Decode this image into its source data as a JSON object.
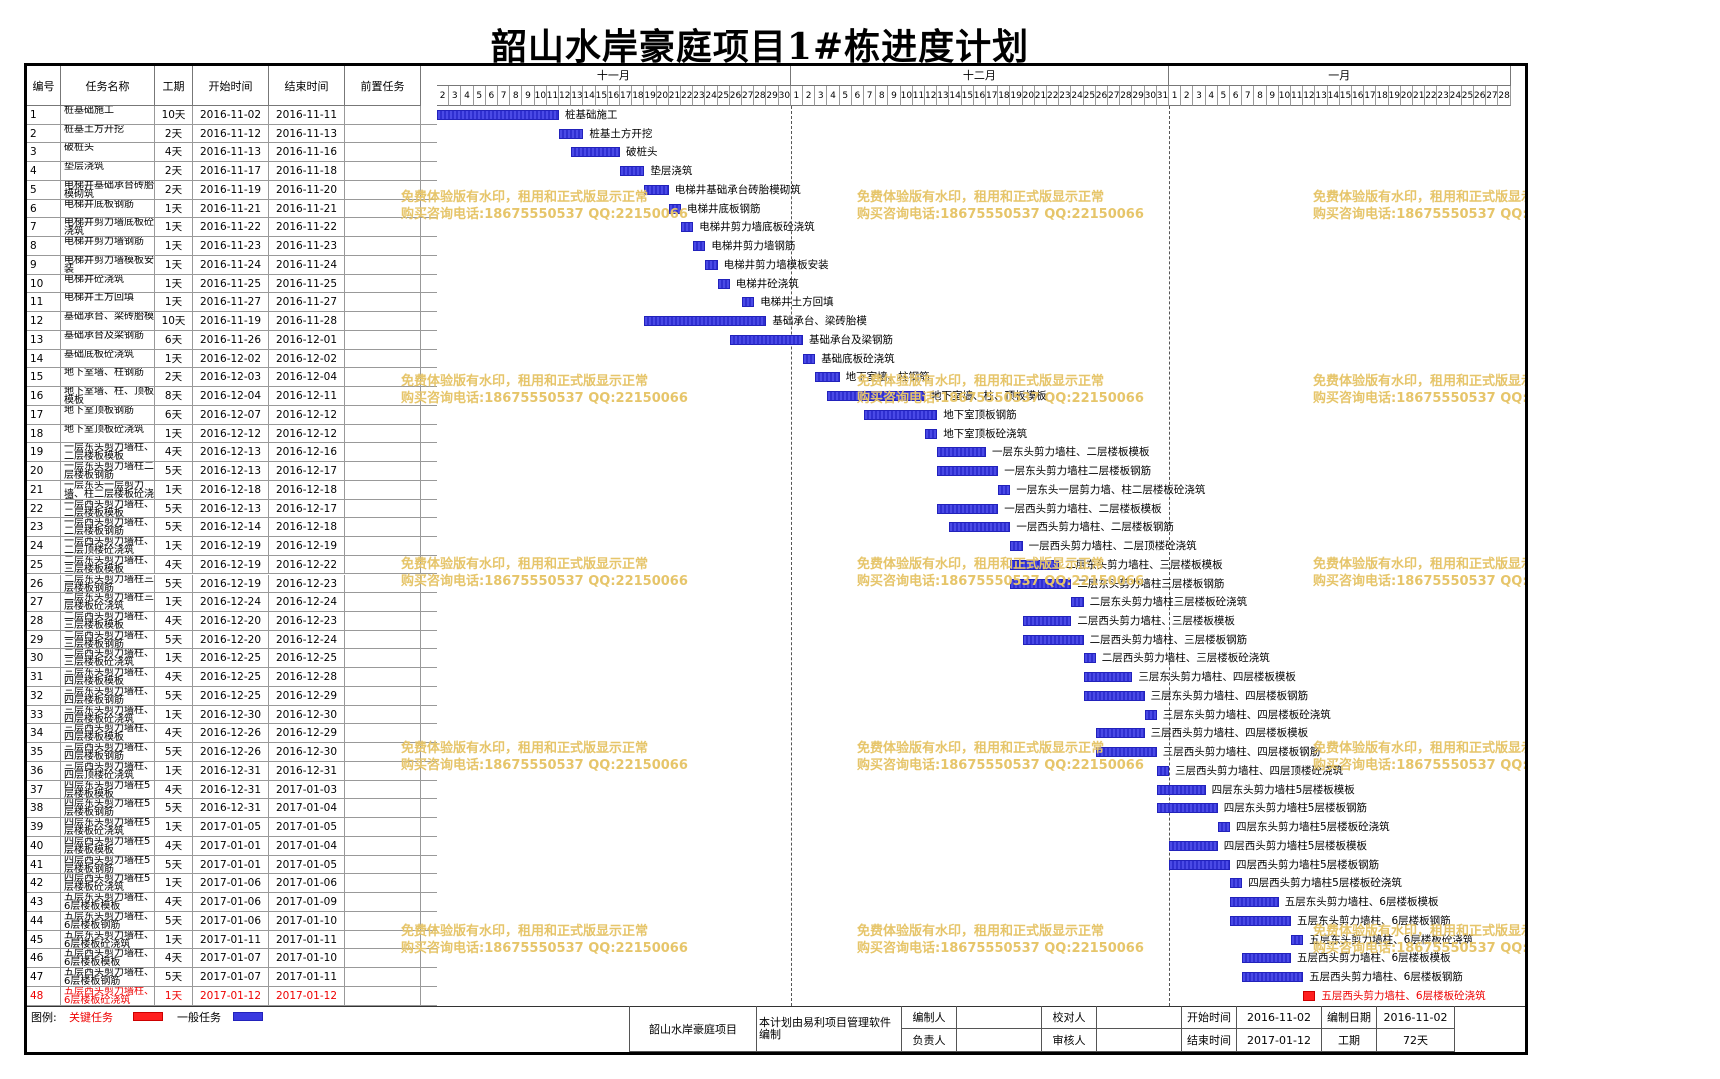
{
  "title": "韶山水岸豪庭项目1#栋进度计划",
  "columns": {
    "id": "编号",
    "name": "任务名称",
    "duration": "工期",
    "start": "开始时间",
    "end": "结束时间",
    "pred": "前置任务"
  },
  "months": [
    {
      "label": "十一月",
      "days": 29,
      "first_day": 2
    },
    {
      "label": "十二月",
      "days": 31,
      "first_day": 1
    },
    {
      "label": "一月",
      "days": 28,
      "first_day": 1
    }
  ],
  "chart_data": {
    "type": "gantt",
    "x_start": "2016-11-02",
    "x_end": "2017-01-28",
    "tasks": [
      {
        "id": "1",
        "name": "桩基础施工",
        "label": "桩基础施工",
        "duration": "10天",
        "start": "2016-11-02",
        "end": "2016-11-11",
        "critical": false
      },
      {
        "id": "2",
        "name": "桩基土方开挖",
        "label": "桩基土方开挖",
        "duration": "2天",
        "start": "2016-11-12",
        "end": "2016-11-13",
        "critical": false
      },
      {
        "id": "3",
        "name": "破桩头",
        "label": "破桩头",
        "duration": "4天",
        "start": "2016-11-13",
        "end": "2016-11-16",
        "critical": false
      },
      {
        "id": "4",
        "name": "垫层浇筑",
        "label": "垫层浇筑",
        "duration": "2天",
        "start": "2016-11-17",
        "end": "2016-11-18",
        "critical": false
      },
      {
        "id": "5",
        "name": "电梯井基础承台砖胎模砌筑",
        "label": "电梯井基础承台砖胎模砌筑",
        "duration": "2天",
        "start": "2016-11-19",
        "end": "2016-11-20",
        "critical": false
      },
      {
        "id": "6",
        "name": "电梯井底板钢筋",
        "label": "电梯井底板钢筋",
        "duration": "1天",
        "start": "2016-11-21",
        "end": "2016-11-21",
        "critical": false
      },
      {
        "id": "7",
        "name": "电梯井剪力墙底板砼浇筑",
        "label": "电梯井剪力墙底板砼浇筑",
        "duration": "1天",
        "start": "2016-11-22",
        "end": "2016-11-22",
        "critical": false
      },
      {
        "id": "8",
        "name": "电梯井剪力墙钢筋",
        "label": "电梯井剪力墙钢筋",
        "duration": "1天",
        "start": "2016-11-23",
        "end": "2016-11-23",
        "critical": false
      },
      {
        "id": "9",
        "name": "电梯井剪力墙模板安装",
        "label": "电梯井剪力墙模板安装",
        "duration": "1天",
        "start": "2016-11-24",
        "end": "2016-11-24",
        "critical": false
      },
      {
        "id": "10",
        "name": "电梯井砼浇筑",
        "label": "电梯井砼浇筑",
        "duration": "1天",
        "start": "2016-11-25",
        "end": "2016-11-25",
        "critical": false
      },
      {
        "id": "11",
        "name": "电梯井土方回填",
        "label": "电梯井土方回填",
        "duration": "1天",
        "start": "2016-11-27",
        "end": "2016-11-27",
        "critical": false
      },
      {
        "id": "12",
        "name": "基础承台、梁砖胎模",
        "label": "基础承台、梁砖胎模",
        "duration": "10天",
        "start": "2016-11-19",
        "end": "2016-11-28",
        "critical": false
      },
      {
        "id": "13",
        "name": "基础承台及梁钢筋",
        "label": "基础承台及梁钢筋",
        "duration": "6天",
        "start": "2016-11-26",
        "end": "2016-12-01",
        "critical": false
      },
      {
        "id": "14",
        "name": "基础底板砼浇筑",
        "label": "基础底板砼浇筑",
        "duration": "1天",
        "start": "2016-12-02",
        "end": "2016-12-02",
        "critical": false
      },
      {
        "id": "15",
        "name": "地下室墙、柱钢筋",
        "label": "地下室墙、柱钢筋",
        "duration": "2天",
        "start": "2016-12-03",
        "end": "2016-12-04",
        "critical": false
      },
      {
        "id": "16",
        "name": "地下室墙、柱、顶板模板",
        "label": "地下室墙、柱、顶板模板",
        "duration": "8天",
        "start": "2016-12-04",
        "end": "2016-12-11",
        "critical": false
      },
      {
        "id": "17",
        "name": "地下室顶板钢筋",
        "label": "地下室顶板钢筋",
        "duration": "6天",
        "start": "2016-12-07",
        "end": "2016-12-12",
        "critical": false
      },
      {
        "id": "18",
        "name": "地下室顶板砼浇筑",
        "label": "地下室顶板砼浇筑",
        "duration": "1天",
        "start": "2016-12-12",
        "end": "2016-12-12",
        "critical": false
      },
      {
        "id": "19",
        "name": "一层东头剪力墙柱、二层楼板模板",
        "label": "一层东头剪力墙柱、二层楼板模板",
        "duration": "4天",
        "start": "2016-12-13",
        "end": "2016-12-16",
        "critical": false
      },
      {
        "id": "20",
        "name": "一层东头剪力墙柱二层楼板钢筋",
        "label": "一层东头剪力墙柱二层楼板钢筋",
        "duration": "5天",
        "start": "2016-12-13",
        "end": "2016-12-17",
        "critical": false
      },
      {
        "id": "21",
        "name": "一层东头一层剪力墙、柱二层楼板砼浇筑",
        "label": "一层东头一层剪力墙、柱二层楼板砼浇筑",
        "duration": "1天",
        "start": "2016-12-18",
        "end": "2016-12-18",
        "critical": false
      },
      {
        "id": "22",
        "name": "一层西头剪力墙柱、二层楼板模板",
        "label": "一层西头剪力墙柱、二层楼板模板",
        "duration": "5天",
        "start": "2016-12-13",
        "end": "2016-12-17",
        "critical": false
      },
      {
        "id": "23",
        "name": "一层西头剪力墙柱、二层楼板钢筋",
        "label": "一层西头剪力墙柱、二层楼板钢筋",
        "duration": "5天",
        "start": "2016-12-14",
        "end": "2016-12-18",
        "critical": false
      },
      {
        "id": "24",
        "name": "一层西头剪力墙柱、二层顶楼砼浇筑",
        "label": "一层西头剪力墙柱、二层顶楼砼浇筑",
        "duration": "1天",
        "start": "2016-12-19",
        "end": "2016-12-19",
        "critical": false
      },
      {
        "id": "25",
        "name": "二层东头剪力墙柱、三层楼板模板",
        "label": "二层东头剪力墙柱、三层楼板模板",
        "duration": "4天",
        "start": "2016-12-19",
        "end": "2016-12-22",
        "critical": false
      },
      {
        "id": "26",
        "name": "二层东头剪力墙柱三层楼板钢筋",
        "label": "二层东头剪力墙柱三层楼板钢筋",
        "duration": "5天",
        "start": "2016-12-19",
        "end": "2016-12-23",
        "critical": false
      },
      {
        "id": "27",
        "name": "二层东头剪力墙柱三层楼板砼浇筑",
        "label": "二层东头剪力墙柱三层楼板砼浇筑",
        "duration": "1天",
        "start": "2016-12-24",
        "end": "2016-12-24",
        "critical": false
      },
      {
        "id": "28",
        "name": "二层西头剪力墙柱、三层楼板模板",
        "label": "二层西头剪力墙柱、三层楼板模板",
        "duration": "4天",
        "start": "2016-12-20",
        "end": "2016-12-23",
        "critical": false
      },
      {
        "id": "29",
        "name": "二层西头剪力墙柱、三层楼板钢筋",
        "label": "二层西头剪力墙柱、三层楼板钢筋",
        "duration": "5天",
        "start": "2016-12-20",
        "end": "2016-12-24",
        "critical": false
      },
      {
        "id": "30",
        "name": "二层西头剪力墙柱、三层楼板砼浇筑",
        "label": "二层西头剪力墙柱、三层楼板砼浇筑",
        "duration": "1天",
        "start": "2016-12-25",
        "end": "2016-12-25",
        "critical": false
      },
      {
        "id": "31",
        "name": "三层东头剪力墙柱、四层楼板模板",
        "label": "三层东头剪力墙柱、四层楼板模板",
        "duration": "4天",
        "start": "2016-12-25",
        "end": "2016-12-28",
        "critical": false
      },
      {
        "id": "32",
        "name": "三层东头剪力墙柱、四层楼板钢筋",
        "label": "三层东头剪力墙柱、四层楼板钢筋",
        "duration": "5天",
        "start": "2016-12-25",
        "end": "2016-12-29",
        "critical": false
      },
      {
        "id": "33",
        "name": "三层东头剪力墙柱、四层楼板砼浇筑",
        "label": "三层东头剪力墙柱、四层楼板砼浇筑",
        "duration": "1天",
        "start": "2016-12-30",
        "end": "2016-12-30",
        "critical": false
      },
      {
        "id": "34",
        "name": "三层西头剪力墙柱、四层楼板模板",
        "label": "三层西头剪力墙柱、四层楼板模板",
        "duration": "4天",
        "start": "2016-12-26",
        "end": "2016-12-29",
        "critical": false
      },
      {
        "id": "35",
        "name": "三层西头剪力墙柱、四层楼板钢筋",
        "label": "三层西头剪力墙柱、四层楼板钢筋",
        "duration": "5天",
        "start": "2016-12-26",
        "end": "2016-12-30",
        "critical": false
      },
      {
        "id": "36",
        "name": "三层西头剪力墙柱、四层顶楼砼浇筑",
        "label": "三层西头剪力墙柱、四层顶楼砼浇筑",
        "duration": "1天",
        "start": "2016-12-31",
        "end": "2016-12-31",
        "critical": false
      },
      {
        "id": "37",
        "name": "四层东头剪力墙柱5层楼板模板",
        "label": "四层东头剪力墙柱5层楼板模板",
        "duration": "4天",
        "start": "2016-12-31",
        "end": "2017-01-03",
        "critical": false
      },
      {
        "id": "38",
        "name": "四层东头剪力墙柱5层楼板钢筋",
        "label": "四层东头剪力墙柱5层楼板钢筋",
        "duration": "5天",
        "start": "2016-12-31",
        "end": "2017-01-04",
        "critical": false
      },
      {
        "id": "39",
        "name": "四层东头剪力墙柱5层楼板砼浇筑",
        "label": "四层东头剪力墙柱5层楼板砼浇筑",
        "duration": "1天",
        "start": "2017-01-05",
        "end": "2017-01-05",
        "critical": false
      },
      {
        "id": "40",
        "name": "四层西头剪力墙柱5层楼板模板",
        "label": "四层西头剪力墙柱5层楼板模板",
        "duration": "4天",
        "start": "2017-01-01",
        "end": "2017-01-04",
        "critical": false
      },
      {
        "id": "41",
        "name": "四层西头剪力墙柱5层楼板钢筋",
        "label": "四层西头剪力墙柱5层楼板钢筋",
        "duration": "5天",
        "start": "2017-01-01",
        "end": "2017-01-05",
        "critical": false
      },
      {
        "id": "42",
        "name": "四层西头剪力墙柱5层楼板砼浇筑",
        "label": "四层西头剪力墙柱5层楼板砼浇筑",
        "duration": "1天",
        "start": "2017-01-06",
        "end": "2017-01-06",
        "critical": false
      },
      {
        "id": "43",
        "name": "五层东头剪力墙柱、6层楼板模板",
        "label": "五层东头剪力墙柱、6层楼板模板",
        "duration": "4天",
        "start": "2017-01-06",
        "end": "2017-01-09",
        "critical": false
      },
      {
        "id": "44",
        "name": "五层东头剪力墙柱、6层楼板钢筋",
        "label": "五层东头剪力墙柱、6层楼板钢筋",
        "duration": "5天",
        "start": "2017-01-06",
        "end": "2017-01-10",
        "critical": false
      },
      {
        "id": "45",
        "name": "五层东头剪力墙柱、6层楼板砼浇筑",
        "label": "五层东头剪力墙柱、6层楼板砼浇筑",
        "duration": "1天",
        "start": "2017-01-11",
        "end": "2017-01-11",
        "critical": false
      },
      {
        "id": "46",
        "name": "五层西头剪力墙柱、6层楼板模板",
        "label": "五层西头剪力墙柱、6层楼板模板",
        "duration": "4天",
        "start": "2017-01-07",
        "end": "2017-01-10",
        "critical": false
      },
      {
        "id": "47",
        "name": "五层西头剪力墙柱、6层楼板钢筋",
        "label": "五层西头剪力墙柱、6层楼板钢筋",
        "duration": "5天",
        "start": "2017-01-07",
        "end": "2017-01-11",
        "critical": false
      },
      {
        "id": "48",
        "name": "五层西头剪力墙柱、6层楼板砼浇筑",
        "label": "五层西头剪力墙柱、6层楼板砼浇筑",
        "duration": "1天",
        "start": "2017-01-12",
        "end": "2017-01-12",
        "critical": true
      }
    ]
  },
  "legend": {
    "label": "图例:",
    "critical": "关键任务",
    "normal": "一般任务",
    "critical_color": "#ff2020",
    "normal_color": "#3a3ae0"
  },
  "watermark": {
    "line1": "免费体验版有水印，租用和正式版显示正常",
    "line2": "购买咨询电话:18675550537 QQ:22150066"
  },
  "footer": {
    "project": "韶山水岸豪庭项目",
    "software": "本计划由易利项目管理软件编制",
    "compiler_label": "编制人",
    "proofreader_label": "校对人",
    "start_label": "开始时间",
    "start_value": "2016-11-02",
    "date_label": "编制日期",
    "date_value": "2016-11-02",
    "owner_label": "负责人",
    "reviewer_label": "审核人",
    "end_label": "结束时间",
    "end_value": "2017-01-12",
    "duration_label": "工期",
    "duration_value": "72天"
  }
}
